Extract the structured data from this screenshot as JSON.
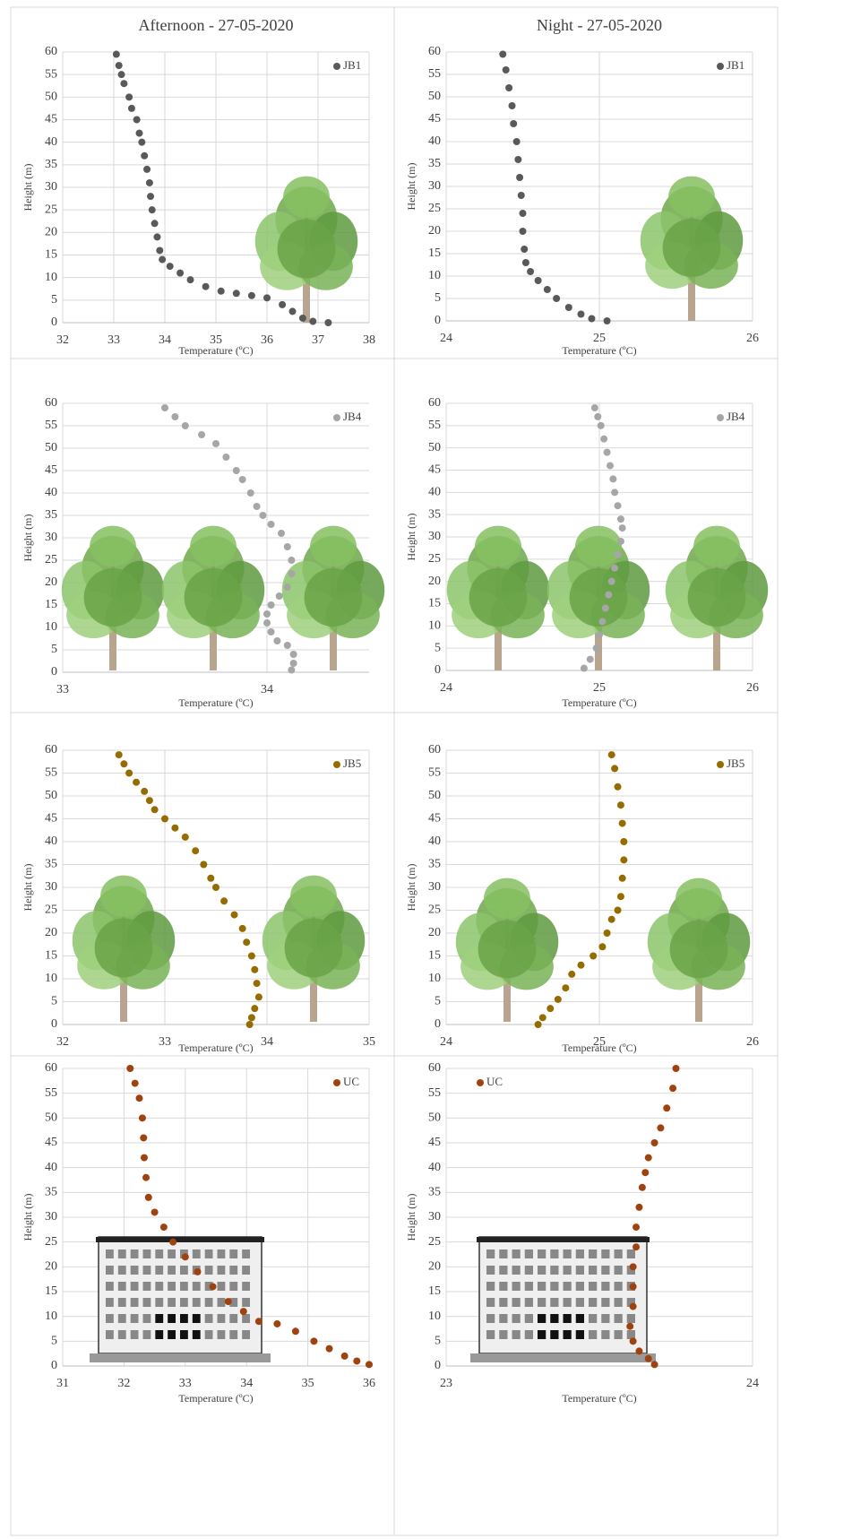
{
  "chart_data": [
    {
      "type": "scatter",
      "title": "Afternoon  - 27-05-2020",
      "xlabel": "Temperature (ºC)",
      "ylabel": "Height (m)",
      "xlim": [
        32,
        38
      ],
      "xticks": [
        32,
        33,
        34,
        35,
        36,
        37,
        38
      ],
      "ylim": [
        0,
        60
      ],
      "yticks": [
        0,
        5,
        10,
        15,
        20,
        25,
        30,
        35,
        40,
        45,
        50,
        55,
        60
      ],
      "grid": true,
      "legend": "top-right",
      "series": [
        {
          "name": "JB1",
          "color": "#595959",
          "x": [
            33.05,
            33.1,
            33.15,
            33.2,
            33.3,
            33.35,
            33.45,
            33.5,
            33.55,
            33.6,
            33.65,
            33.7,
            33.72,
            33.75,
            33.8,
            33.85,
            33.9,
            33.95,
            34.1,
            34.3,
            34.5,
            34.8,
            35.1,
            35.4,
            35.7,
            36,
            36.3,
            36.5,
            36.7,
            36.9,
            37.2
          ],
          "values": [
            59.5,
            57,
            55,
            53,
            50,
            47.5,
            45,
            42,
            40,
            37,
            34,
            31,
            28,
            25,
            22,
            19,
            16,
            14,
            12.5,
            11,
            9.5,
            8,
            7,
            6.5,
            6,
            5.5,
            4,
            2.5,
            1,
            0.3,
            0
          ]
        }
      ]
    },
    {
      "type": "scatter",
      "title": "Night - 27-05-2020",
      "xlabel": "Temperature (ºC)",
      "ylabel": "Height (m)",
      "xlim": [
        24,
        26
      ],
      "xticks": [
        24,
        25,
        26
      ],
      "ylim": [
        0,
        60
      ],
      "yticks": [
        0,
        5,
        10,
        15,
        20,
        25,
        30,
        35,
        40,
        45,
        50,
        55,
        60
      ],
      "grid": true,
      "legend": "top-right",
      "series": [
        {
          "name": "JB1",
          "color": "#595959",
          "x": [
            24.37,
            24.39,
            24.41,
            24.43,
            24.44,
            24.46,
            24.47,
            24.48,
            24.49,
            24.5,
            24.5,
            24.51,
            24.52,
            24.55,
            24.6,
            24.66,
            24.72,
            24.8,
            24.88,
            24.95,
            25.05
          ],
          "values": [
            59.5,
            56,
            52,
            48,
            44,
            40,
            36,
            32,
            28,
            24,
            20,
            16,
            13,
            11,
            9,
            7,
            5,
            3,
            1.5,
            0.5,
            0
          ]
        }
      ]
    },
    {
      "type": "scatter",
      "xlabel": "Temperature (ºC)",
      "ylabel": "Height (m)",
      "xlim": [
        33,
        34.5
      ],
      "xticks": [
        33,
        34
      ],
      "ylim": [
        0,
        60
      ],
      "yticks": [
        0,
        5,
        10,
        15,
        20,
        25,
        30,
        35,
        40,
        45,
        50,
        55,
        60
      ],
      "grid": true,
      "legend": "top-right",
      "series": [
        {
          "name": "JB4",
          "color": "#a6a6a6",
          "x": [
            33.5,
            33.55,
            33.6,
            33.68,
            33.75,
            33.8,
            33.85,
            33.88,
            33.92,
            33.95,
            33.98,
            34.02,
            34.07,
            34.1,
            34.12,
            34.12,
            34.1,
            34.06,
            34.02,
            34,
            34,
            34.02,
            34.05,
            34.1,
            34.13,
            34.13,
            34.12
          ],
          "values": [
            59,
            57,
            55,
            53,
            51,
            48,
            45,
            43,
            40,
            37,
            35,
            33,
            31,
            28,
            25,
            22,
            19,
            17,
            15,
            13,
            11,
            9,
            7,
            6,
            4,
            2,
            0.5
          ]
        }
      ]
    },
    {
      "type": "scatter",
      "xlabel": "Temperature (ºC)",
      "ylabel": "Height (m)",
      "xlim": [
        24,
        26
      ],
      "xticks": [
        24,
        25,
        26
      ],
      "ylim": [
        0,
        60
      ],
      "yticks": [
        0,
        5,
        10,
        15,
        20,
        25,
        30,
        35,
        40,
        45,
        50,
        55,
        60
      ],
      "grid": true,
      "legend": "top-right",
      "series": [
        {
          "name": "JB4",
          "color": "#a6a6a6",
          "x": [
            24.97,
            24.99,
            25.01,
            25.03,
            25.05,
            25.07,
            25.09,
            25.1,
            25.12,
            25.14,
            25.15,
            25.14,
            25.12,
            25.1,
            25.08,
            25.06,
            25.04,
            25.02,
            25,
            24.98,
            24.94,
            24.9
          ],
          "values": [
            59,
            57,
            55,
            52,
            49,
            46,
            43,
            40,
            37,
            34,
            32,
            29,
            26,
            23,
            20,
            17,
            14,
            11,
            8,
            5,
            2.5,
            0.5
          ]
        }
      ]
    },
    {
      "type": "scatter",
      "xlabel": "Temperature (ºC)",
      "ylabel": "Height (m)",
      "xlim": [
        32,
        35
      ],
      "xticks": [
        32,
        33,
        34,
        35
      ],
      "ylim": [
        0,
        60
      ],
      "yticks": [
        0,
        5,
        10,
        15,
        20,
        25,
        30,
        35,
        40,
        45,
        50,
        55,
        60
      ],
      "grid": true,
      "legend": "top-right",
      "series": [
        {
          "name": "JB5",
          "color": "#946c00",
          "x": [
            32.55,
            32.6,
            32.65,
            32.72,
            32.8,
            32.85,
            32.9,
            33,
            33.1,
            33.2,
            33.3,
            33.38,
            33.45,
            33.5,
            33.58,
            33.68,
            33.76,
            33.8,
            33.85,
            33.88,
            33.9,
            33.92,
            33.88,
            33.85,
            33.83
          ],
          "values": [
            59,
            57,
            55,
            53,
            51,
            49,
            47,
            45,
            43,
            41,
            38,
            35,
            32,
            30,
            27,
            24,
            21,
            18,
            15,
            12,
            9,
            6,
            3.5,
            1.5,
            0
          ]
        }
      ]
    },
    {
      "type": "scatter",
      "xlabel": "Temperature (ºC)",
      "ylabel": "Height (m)",
      "xlim": [
        24,
        26
      ],
      "xticks": [
        24,
        25,
        26
      ],
      "ylim": [
        0,
        60
      ],
      "yticks": [
        0,
        5,
        10,
        15,
        20,
        25,
        30,
        35,
        40,
        45,
        50,
        55,
        60
      ],
      "grid": true,
      "legend": "top-right",
      "series": [
        {
          "name": "JB5",
          "color": "#946c00",
          "x": [
            25.08,
            25.1,
            25.12,
            25.14,
            25.15,
            25.16,
            25.16,
            25.15,
            25.14,
            25.12,
            25.08,
            25.05,
            25.02,
            24.96,
            24.88,
            24.82,
            24.78,
            24.73,
            24.68,
            24.63,
            24.6
          ],
          "values": [
            59,
            56,
            52,
            48,
            44,
            40,
            36,
            32,
            28,
            25,
            23,
            20,
            17,
            15,
            13,
            11,
            8,
            5.5,
            3.5,
            1.5,
            0
          ]
        }
      ]
    },
    {
      "type": "scatter",
      "xlabel": "Temperature (ºC)",
      "ylabel": "Height (m)",
      "xlim": [
        31,
        36
      ],
      "xticks": [
        31,
        32,
        33,
        34,
        35,
        36
      ],
      "ylim": [
        0,
        60
      ],
      "yticks": [
        0,
        5,
        10,
        15,
        20,
        25,
        30,
        35,
        40,
        45,
        50,
        55,
        60
      ],
      "grid": true,
      "legend": "top-right",
      "series": [
        {
          "name": "UC",
          "color": "#a0420f",
          "x": [
            32.1,
            32.18,
            32.25,
            32.3,
            32.32,
            32.33,
            32.36,
            32.4,
            32.5,
            32.65,
            32.8,
            33,
            33.2,
            33.45,
            33.7,
            33.95,
            34.2,
            34.5,
            34.8,
            35.1,
            35.35,
            35.6,
            35.8,
            36
          ],
          "values": [
            60,
            57,
            54,
            50,
            46,
            42,
            38,
            34,
            31,
            28,
            25,
            22,
            19,
            16,
            13,
            11,
            9,
            8.5,
            7,
            5,
            3.5,
            2,
            1,
            0.3
          ]
        }
      ]
    },
    {
      "type": "scatter",
      "xlabel": "Temperature (ºC)",
      "ylabel": "Height (m)",
      "xlim": [
        23,
        24
      ],
      "xticks": [
        23,
        24
      ],
      "ylim": [
        0,
        60
      ],
      "yticks": [
        0,
        5,
        10,
        15,
        20,
        25,
        30,
        35,
        40,
        45,
        50,
        55,
        60
      ],
      "grid": true,
      "legend": "top-left",
      "series": [
        {
          "name": "UC",
          "color": "#a0420f",
          "x": [
            23.75,
            23.74,
            23.72,
            23.7,
            23.68,
            23.66,
            23.65,
            23.64,
            23.63,
            23.62,
            23.62,
            23.61,
            23.61,
            23.61,
            23.6,
            23.61,
            23.63,
            23.66,
            23.68
          ],
          "values": [
            60,
            56,
            52,
            48,
            45,
            42,
            39,
            36,
            32,
            28,
            24,
            20,
            16,
            12,
            8,
            5,
            3,
            1.5,
            0.3
          ]
        }
      ]
    }
  ]
}
